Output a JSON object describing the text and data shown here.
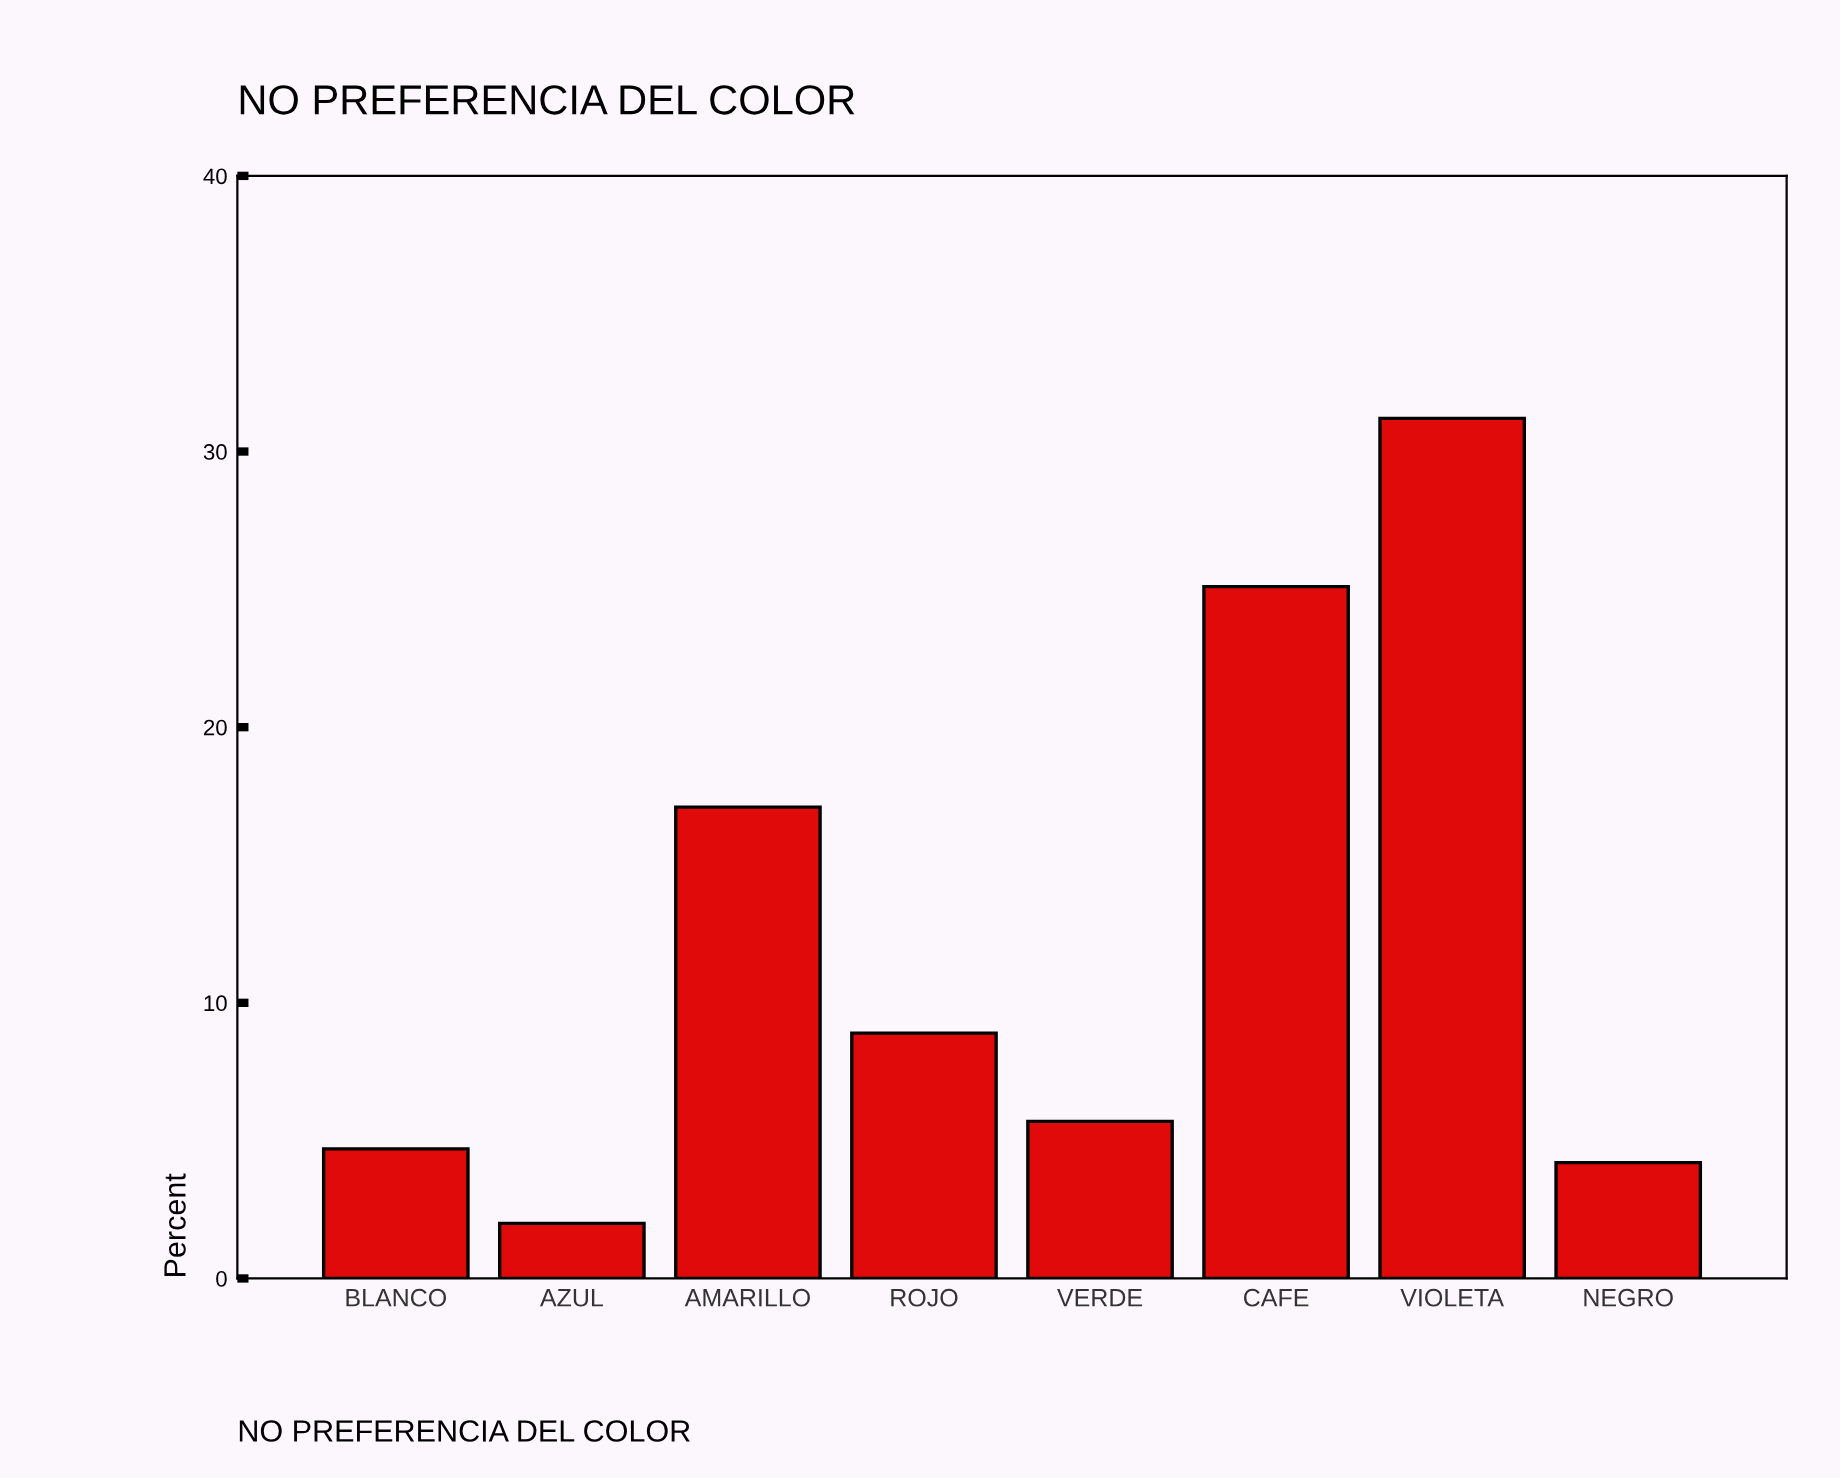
{
  "chart_data": {
    "type": "bar",
    "title": "NO PREFERENCIA DEL COLOR",
    "xlabel": "NO PREFERENCIA DEL COLOR",
    "ylabel": "Percent",
    "categories": [
      "BLANCO",
      "AZUL",
      "AMARILLO",
      "ROJO",
      "VERDE",
      "CAFE",
      "VIOLETA",
      "NEGRO"
    ],
    "values": [
      4.7,
      2.0,
      17.1,
      8.9,
      5.7,
      25.1,
      31.2,
      4.2
    ],
    "color": "#e00a0a",
    "ylim": [
      0,
      40
    ],
    "yticks": [
      0,
      10,
      20,
      30,
      40
    ],
    "grid": false,
    "legend": false
  }
}
